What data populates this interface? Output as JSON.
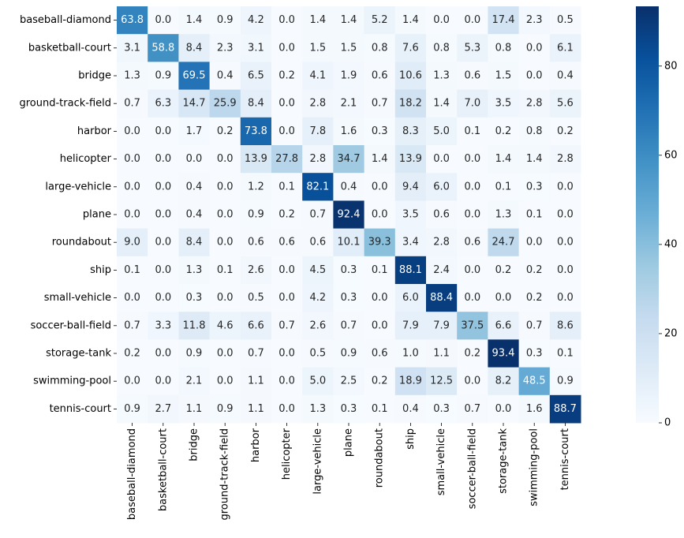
{
  "chart_data": {
    "type": "heatmap",
    "title": "",
    "xlabel": "",
    "ylabel": "",
    "row_labels": [
      "baseball-diamond",
      "basketball-court",
      "bridge",
      "ground-track-field",
      "harbor",
      "helicopter",
      "large-vehicle",
      "plane",
      "roundabout",
      "ship",
      "small-vehicle",
      "soccer-ball-field",
      "storage-tank",
      "swimming-pool",
      "tennis-court"
    ],
    "col_labels": [
      "baseball-diamond",
      "basketball-court",
      "bridge",
      "ground-track-field",
      "harbor",
      "helicopter",
      "large-vehicle",
      "plane",
      "roundabout",
      "ship",
      "small-vehicle",
      "soccer-ball-field",
      "storage-tank",
      "swimming-pool",
      "tennis-court"
    ],
    "values": [
      [
        63.8,
        0.0,
        1.4,
        0.9,
        4.2,
        0.0,
        1.4,
        1.4,
        5.2,
        1.4,
        0.0,
        0.0,
        17.4,
        2.3,
        0.5
      ],
      [
        3.1,
        58.8,
        8.4,
        2.3,
        3.1,
        0.0,
        1.5,
        1.5,
        0.8,
        7.6,
        0.8,
        5.3,
        0.8,
        0.0,
        6.1
      ],
      [
        1.3,
        0.9,
        69.5,
        0.4,
        6.5,
        0.2,
        4.1,
        1.9,
        0.6,
        10.6,
        1.3,
        0.6,
        1.5,
        0.0,
        0.4
      ],
      [
        0.7,
        6.3,
        14.7,
        25.9,
        8.4,
        0.0,
        2.8,
        2.1,
        0.7,
        18.2,
        1.4,
        7.0,
        3.5,
        2.8,
        5.6
      ],
      [
        0.0,
        0.0,
        1.7,
        0.2,
        73.8,
        0.0,
        7.8,
        1.6,
        0.3,
        8.3,
        5.0,
        0.1,
        0.2,
        0.8,
        0.2
      ],
      [
        0.0,
        0.0,
        0.0,
        0.0,
        13.9,
        27.8,
        2.8,
        34.7,
        1.4,
        13.9,
        0.0,
        0.0,
        1.4,
        1.4,
        2.8
      ],
      [
        0.0,
        0.0,
        0.4,
        0.0,
        1.2,
        0.1,
        82.1,
        0.4,
        0.0,
        9.4,
        6.0,
        0.0,
        0.1,
        0.3,
        0.0
      ],
      [
        0.0,
        0.0,
        0.4,
        0.0,
        0.9,
        0.2,
        0.7,
        92.4,
        0.0,
        3.5,
        0.6,
        0.0,
        1.3,
        0.1,
        0.0
      ],
      [
        9.0,
        0.0,
        8.4,
        0.0,
        0.6,
        0.6,
        0.6,
        10.1,
        39.3,
        3.4,
        2.8,
        0.6,
        24.7,
        0.0,
        0.0
      ],
      [
        0.1,
        0.0,
        1.3,
        0.1,
        2.6,
        0.0,
        4.5,
        0.3,
        0.1,
        88.1,
        2.4,
        0.0,
        0.2,
        0.2,
        0.0
      ],
      [
        0.0,
        0.0,
        0.3,
        0.0,
        0.5,
        0.0,
        4.2,
        0.3,
        0.0,
        6.0,
        88.4,
        0.0,
        0.0,
        0.2,
        0.0
      ],
      [
        0.7,
        3.3,
        11.8,
        4.6,
        6.6,
        0.7,
        2.6,
        0.7,
        0.0,
        7.9,
        7.9,
        37.5,
        6.6,
        0.7,
        8.6
      ],
      [
        0.2,
        0.0,
        0.9,
        0.0,
        0.7,
        0.0,
        0.5,
        0.9,
        0.6,
        1.0,
        1.1,
        0.2,
        93.4,
        0.3,
        0.1
      ],
      [
        0.0,
        0.0,
        2.1,
        0.0,
        1.1,
        0.0,
        5.0,
        2.5,
        0.2,
        18.9,
        12.5,
        0.0,
        8.2,
        48.5,
        0.9
      ],
      [
        0.9,
        2.7,
        1.1,
        0.9,
        1.1,
        0.0,
        1.3,
        0.3,
        0.1,
        0.4,
        0.3,
        0.7,
        0.0,
        1.6,
        88.7
      ]
    ],
    "value_range": [
      0,
      93.4
    ],
    "colormap": "Blues",
    "colorbar": {
      "position": "right",
      "ticks": [
        0,
        20,
        40,
        60,
        80
      ],
      "tick_labels": [
        "0",
        "20",
        "40",
        "60",
        "80"
      ]
    },
    "grid": false,
    "colors": {
      "low": "#f7fbff",
      "high": "#08306b",
      "text_dark": "#262626",
      "text_light": "#ffffff"
    }
  }
}
